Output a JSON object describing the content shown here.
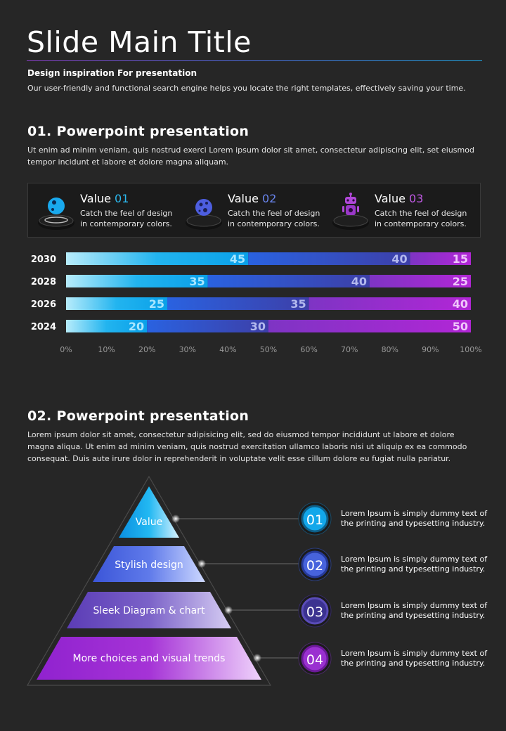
{
  "header": {
    "title": "Slide Main Title",
    "subtitle": "Design inspiration For presentation",
    "description": "Our user-friendly and functional search engine helps you locate the right templates, effectively saving your time."
  },
  "section1": {
    "heading": "01. Powerpoint presentation",
    "text": "Ut enim ad minim veniam, quis nostrud exerci  Lorem ipsum dolor sit amet, consectetur adipiscing elit, set eiusmod tempor incidunt et labore et dolore magna aliquam.",
    "values": [
      {
        "label": "Value",
        "num": "01",
        "line1": "Catch the feel of design",
        "line2": "in contemporary colors.",
        "icon": "planet-icon",
        "color": "#2bb8ee"
      },
      {
        "label": "Value",
        "num": "02",
        "line1": "Catch the feel of design",
        "line2": "in contemporary colors.",
        "icon": "moon-icon",
        "color": "#5b7be8"
      },
      {
        "label": "Value",
        "num": "03",
        "line1": "Catch the feel of design",
        "line2": "in contemporary colors.",
        "icon": "robot-icon",
        "color": "#b048d8"
      }
    ]
  },
  "chart_data": {
    "type": "bar",
    "stacked": true,
    "orientation": "horizontal",
    "categories": [
      "2030",
      "2028",
      "2026",
      "2024"
    ],
    "series": [
      {
        "values": [
          45,
          35,
          25,
          20
        ],
        "color": "#18a9ec"
      },
      {
        "values": [
          40,
          40,
          35,
          30
        ],
        "color": "#3a4ec4"
      },
      {
        "values": [
          15,
          25,
          40,
          50
        ],
        "color": "#9b3ad0"
      }
    ],
    "xticks": [
      "0%",
      "10%",
      "20%",
      "30%",
      "40%",
      "50%",
      "60%",
      "70%",
      "80%",
      "90%",
      "100%"
    ],
    "xlim": [
      0,
      100
    ]
  },
  "section2": {
    "heading": "02. Powerpoint presentation",
    "text_lines": [
      "Lorem ipsum dolor sit amet, consectetur adipisicing elit, sed do eiusmod tempor incididunt ut labore et dolore",
      "magna aliqua. Ut enim ad minim veniam, quis nostrud exercitation ullamco laboris nisi ut aliquip ex ea commodo",
      "consequat. Duis aute irure dolor in reprehenderit in voluptate velit esse cillum dolore eu fugiat nulla pariatur."
    ],
    "pyramid": [
      {
        "label": "Value",
        "num": "01",
        "line1": "Lorem Ipsum is simply dummy text of",
        "line2": "the printing and typesetting industry.",
        "color": "#1eaaea"
      },
      {
        "label": "Stylish design",
        "num": "02",
        "line1": "Lorem Ipsum is simply dummy text of",
        "line2": "the printing and typesetting industry.",
        "color": "#4b63dc"
      },
      {
        "label": "Sleek Diagram & chart",
        "num": "03",
        "line1": "Lorem Ipsum is simply dummy text of",
        "line2": "the printing and typesetting industry.",
        "color": "#5a44b8"
      },
      {
        "label": "More choices and visual trends",
        "num": "04",
        "line1": "Lorem Ipsum is simply dummy text of",
        "line2": "the printing and typesetting industry.",
        "color": "#9a2fd0"
      }
    ]
  }
}
